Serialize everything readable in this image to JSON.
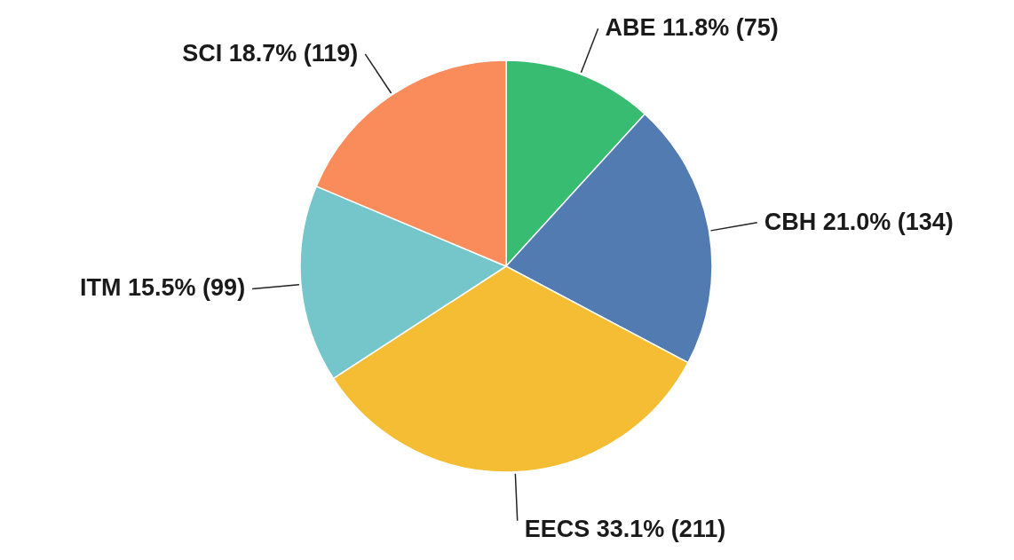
{
  "chart_data": {
    "type": "pie",
    "categories": [
      "ABE",
      "CBH",
      "EECS",
      "ITM",
      "SCI"
    ],
    "values": [
      75,
      134,
      211,
      99,
      119
    ],
    "colors": [
      "#37bc72",
      "#527bb1",
      "#f5bd33",
      "#74c6cb",
      "#f98c5a"
    ],
    "value_labels": [
      "11.8% (75)",
      "21.0% (134)",
      "33.1% (211)",
      "15.5% (99)",
      "18.7% (119)"
    ]
  }
}
